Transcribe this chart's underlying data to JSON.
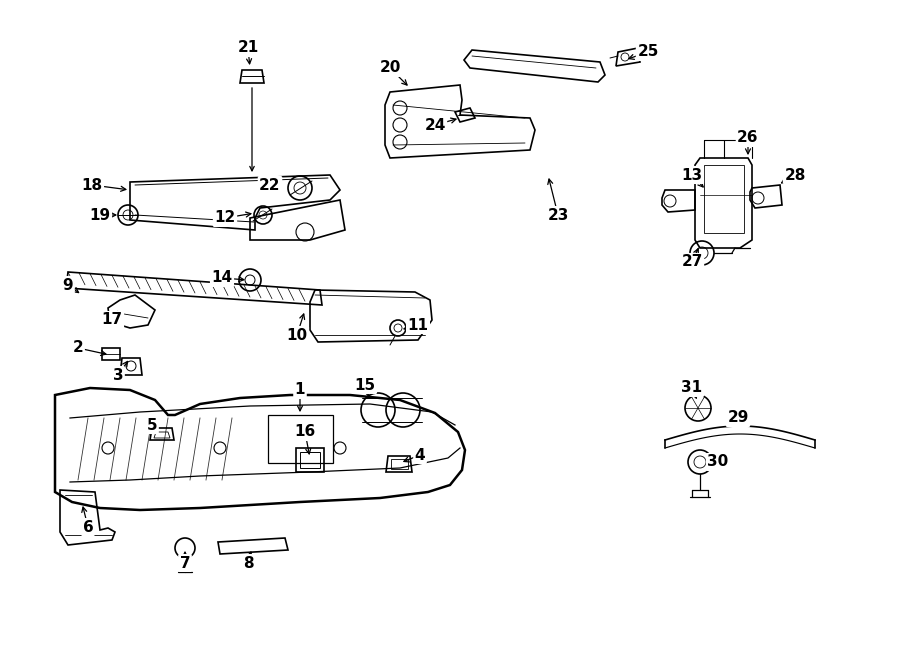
{
  "bg": "#ffffff",
  "lc": "#000000",
  "fw": 9.0,
  "fh": 6.61,
  "dpi": 100,
  "callouts": [
    [
      "1",
      300,
      390,
      300,
      415,
      "v"
    ],
    [
      "2",
      78,
      348,
      110,
      355,
      "h"
    ],
    [
      "3",
      118,
      375,
      130,
      358,
      "v"
    ],
    [
      "4",
      420,
      455,
      400,
      463,
      "h"
    ],
    [
      "5",
      152,
      425,
      158,
      437,
      "h"
    ],
    [
      "6",
      88,
      527,
      82,
      503,
      "v"
    ],
    [
      "7",
      185,
      563,
      185,
      548,
      "v"
    ],
    [
      "8",
      248,
      563,
      252,
      548,
      "h"
    ],
    [
      "9",
      68,
      285,
      82,
      295,
      "h"
    ],
    [
      "10",
      297,
      335,
      305,
      310,
      "v"
    ],
    [
      "11",
      418,
      325,
      400,
      330,
      "h"
    ],
    [
      "12",
      225,
      218,
      255,
      213,
      "h"
    ],
    [
      "13",
      692,
      175,
      706,
      190,
      "v"
    ],
    [
      "14",
      222,
      278,
      248,
      280,
      "h"
    ],
    [
      "15",
      365,
      385,
      370,
      400,
      "v"
    ],
    [
      "16",
      305,
      432,
      310,
      458,
      "v"
    ],
    [
      "17",
      112,
      320,
      120,
      308,
      "h"
    ],
    [
      "18",
      92,
      185,
      130,
      190,
      "h"
    ],
    [
      "19",
      100,
      215,
      120,
      215,
      "h"
    ],
    [
      "20",
      390,
      68,
      410,
      88,
      "v"
    ],
    [
      "21",
      248,
      48,
      250,
      68,
      "v"
    ],
    [
      "22",
      270,
      185,
      282,
      188,
      "h"
    ],
    [
      "23",
      558,
      215,
      548,
      175,
      "v"
    ],
    [
      "24",
      435,
      125,
      460,
      118,
      "h"
    ],
    [
      "25",
      648,
      52,
      625,
      60,
      "h"
    ],
    [
      "26",
      748,
      138,
      748,
      158,
      "v"
    ],
    [
      "27",
      692,
      262,
      700,
      245,
      "v"
    ],
    [
      "28",
      795,
      175,
      778,
      185,
      "h"
    ],
    [
      "29",
      738,
      418,
      730,
      428,
      "h"
    ],
    [
      "30",
      718,
      462,
      710,
      455,
      "h"
    ],
    [
      "31",
      692,
      388,
      698,
      402,
      "v"
    ]
  ]
}
